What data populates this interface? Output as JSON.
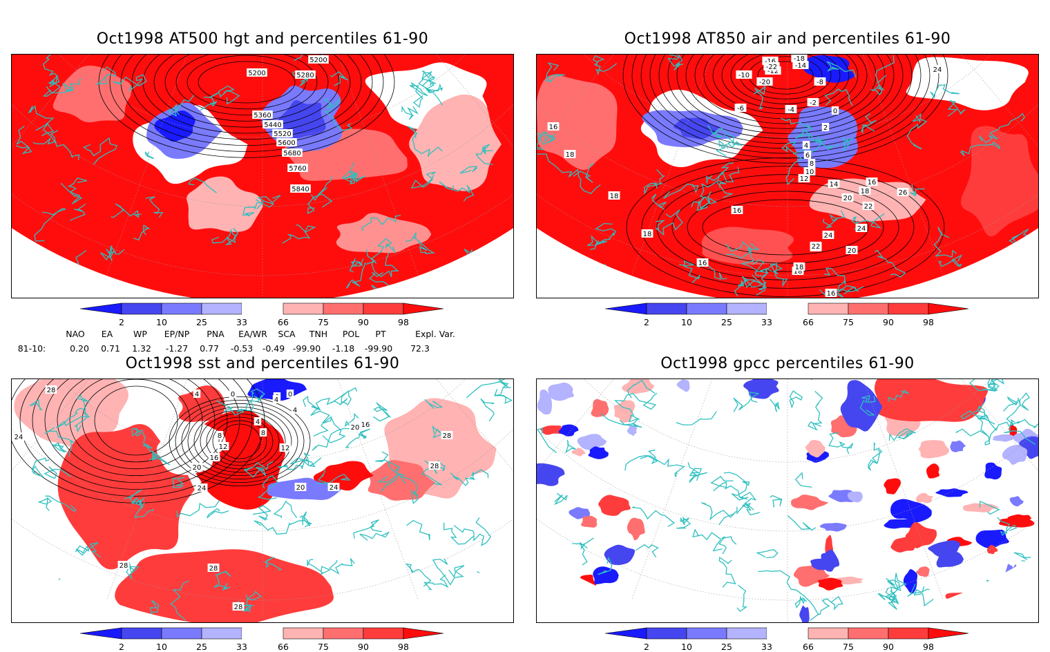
{
  "panels": [
    {
      "id": "hgt500",
      "title": "Oct1998 AT500 hgt and percentiles 61-90",
      "labels": [
        "5200",
        "5200",
        "5280",
        "5360",
        "5440",
        "5520",
        "5600",
        "5680",
        "5760",
        "5840"
      ]
    },
    {
      "id": "air850",
      "title": "Oct1998 AT850 air and percentiles 61-90",
      "labels": [
        "-16",
        "-18",
        "-14",
        "-12",
        "-10",
        "-20",
        "-22",
        "-8",
        "-6",
        "-4",
        "-2",
        "0",
        "2",
        "4",
        "6",
        "8",
        "10",
        "12",
        "14",
        "16",
        "18",
        "20",
        "22",
        "24",
        "26",
        "16",
        "18",
        "18",
        "18",
        "16",
        "16",
        "18",
        "20",
        "22",
        "24",
        "24",
        "22",
        "20",
        "18",
        "16"
      ]
    },
    {
      "id": "sst",
      "title": "Oct1998 sst and percentiles 61-90",
      "labels": [
        "28",
        "24",
        "4",
        "0",
        "0",
        "0",
        "4",
        "4",
        "4",
        "8",
        "8",
        "12",
        "16",
        "20",
        "24",
        "16",
        "20",
        "12",
        "20",
        "24",
        "28",
        "28",
        "28",
        "28",
        "28"
      ]
    },
    {
      "id": "gpcc",
      "title": "Oct1998 gpcc percentiles 61-90",
      "labels": []
    }
  ],
  "colorbar": {
    "ticks": [
      "2",
      "10",
      "25",
      "33",
      "66",
      "75",
      "90",
      "98"
    ],
    "colors": {
      "below": [
        "#1a1aff",
        "#4646f0",
        "#7a7aff",
        "#b3b3ff"
      ],
      "above": [
        "#ffb3b3",
        "#ff6f6f",
        "#ff3c3c",
        "#ff0d0d"
      ]
    }
  },
  "indices": {
    "headers": [
      "NAO",
      "EA",
      "WP",
      "EP/NP",
      "PNA",
      "EA/WR",
      "SCA",
      "TNH",
      "POL",
      "PT",
      "Expl. Var."
    ],
    "row_label": "81-10:",
    "values": [
      "0.20",
      "0.71",
      "1.32",
      "-1.27",
      "0.77",
      "-0.53",
      "-0.49",
      "-99.90",
      "-1.18",
      "-99.90",
      "72.3"
    ]
  },
  "colors": {
    "coast": "#2fbfbf",
    "warm": "#ff0d0d",
    "cold": "#1a1aff"
  }
}
